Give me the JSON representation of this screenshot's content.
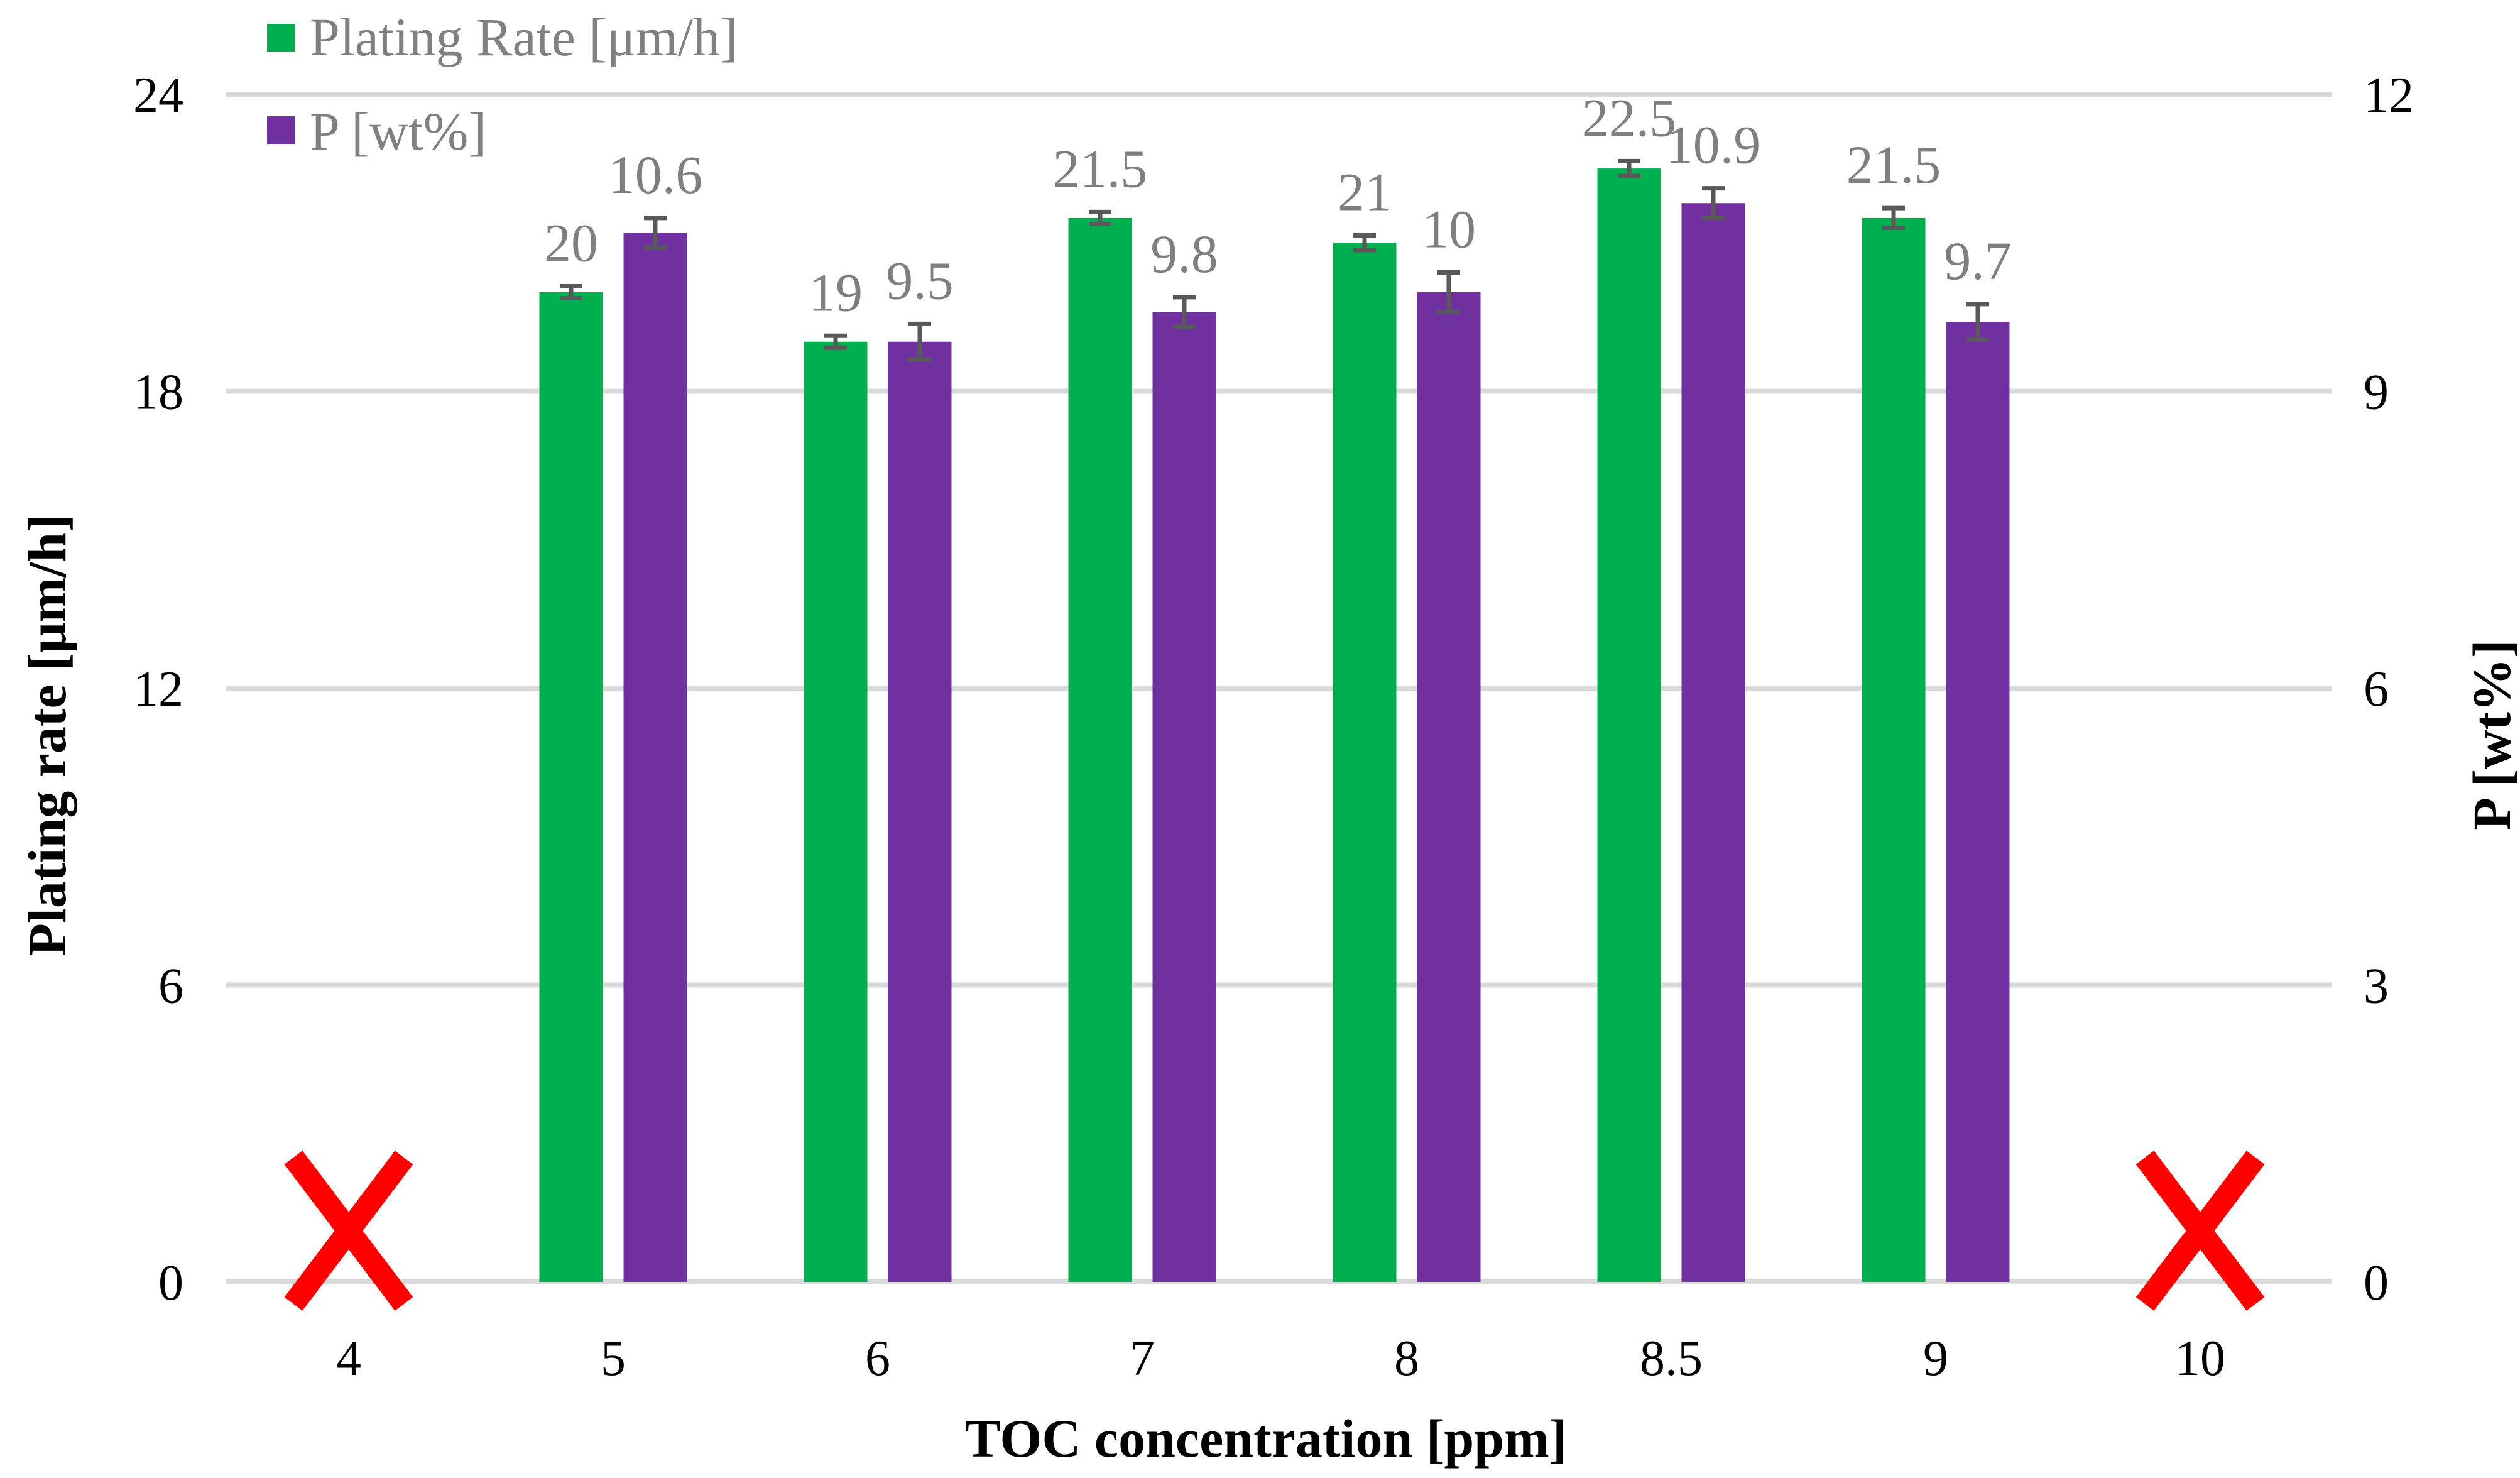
{
  "chart_data": {
    "type": "bar",
    "title": "",
    "xlabel": "TOC concentration [ppm]",
    "ylabel": "Plating rate [μm/h]",
    "y2label": "P [wt%]",
    "categories": [
      "4",
      "5",
      "6",
      "7",
      "8",
      "8.5",
      "9",
      "10"
    ],
    "ylim": [
      0,
      24
    ],
    "y2lim": [
      0,
      12
    ],
    "yticks": [
      "0",
      "6",
      "12",
      "18",
      "24"
    ],
    "y2ticks": [
      "0",
      "3",
      "6",
      "9",
      "12"
    ],
    "grid": true,
    "legend_position": "top-left",
    "series": [
      {
        "name": "Plating Rate [μm/h]",
        "axis": "left",
        "color": "#00b050",
        "values": [
          null,
          20,
          19,
          21.5,
          21,
          22.5,
          21.5,
          null
        ],
        "labels": [
          "",
          "20",
          "19",
          "21.5",
          "21",
          "22.5",
          "21.5",
          ""
        ],
        "errors": [
          0,
          0.12,
          0.12,
          0.12,
          0.15,
          0.15,
          0.2,
          0
        ]
      },
      {
        "name": "P [wt%]",
        "axis": "right",
        "color": "#7030a0",
        "values": [
          null,
          10.6,
          9.5,
          9.8,
          10,
          10.9,
          9.7,
          null
        ],
        "labels": [
          "",
          "10.6",
          "9.5",
          "9.8",
          "10",
          "10.9",
          "9.7",
          ""
        ],
        "errors": [
          0,
          0.15,
          0.18,
          0.15,
          0.2,
          0.15,
          0.18,
          0
        ]
      }
    ],
    "annotations": [
      {
        "category": "4",
        "symbol": "X",
        "color": "#ff0000"
      },
      {
        "category": "10",
        "symbol": "X",
        "color": "#ff0000"
      }
    ]
  }
}
